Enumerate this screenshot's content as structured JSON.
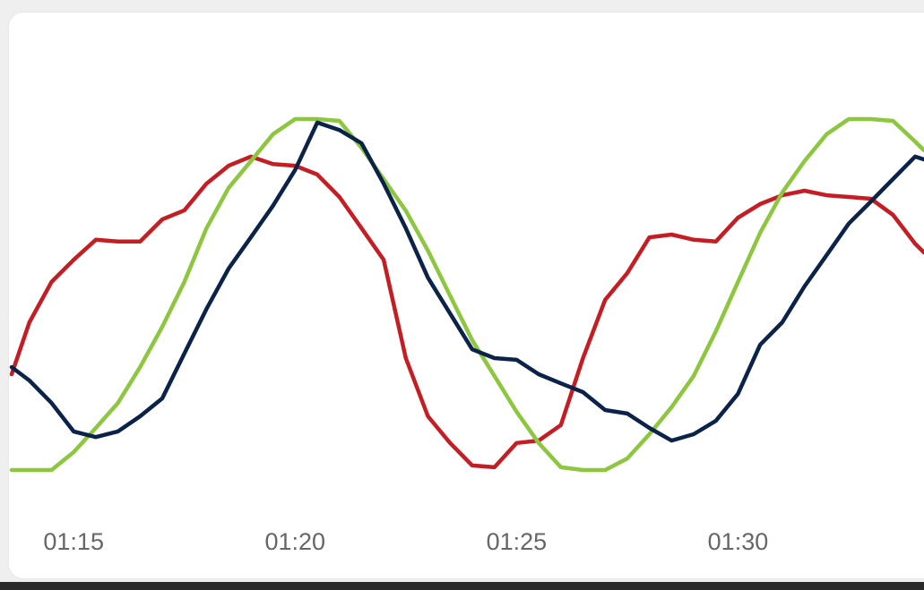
{
  "chart_data": {
    "type": "line",
    "x": [
      73.6,
      74,
      74.5,
      75,
      75.5,
      76,
      76.5,
      77,
      77.5,
      78,
      78.5,
      79,
      79.5,
      80,
      80.5,
      81,
      81.5,
      82,
      82.5,
      83,
      83.5,
      84,
      84.5,
      85,
      85.5,
      86,
      86.5,
      87,
      87.5,
      88,
      88.5,
      89,
      89.5,
      90,
      90.5,
      91,
      91.5,
      92,
      92.5,
      93,
      93.5,
      94,
      94.2
    ],
    "xlim": [
      73.6,
      94.2
    ],
    "xticks": [
      {
        "value": 75,
        "label": "01:15"
      },
      {
        "value": 80,
        "label": "01:20"
      },
      {
        "value": 85,
        "label": "01:25"
      },
      {
        "value": 90,
        "label": "01:30"
      }
    ],
    "ylim": [
      0,
      100
    ],
    "series": [
      {
        "color": "#c41e24",
        "values": [
          27.3,
          42.1,
          53.6,
          59.9,
          65.6,
          65.1,
          65.1,
          71.4,
          74.0,
          81.6,
          86.7,
          89.3,
          87.2,
          86.7,
          84.2,
          77.8,
          68.9,
          59.9,
          31.9,
          15.3,
          7.7,
          1.3,
          0.8,
          7.7,
          8.4,
          12.8,
          31.9,
          48.5,
          56.1,
          66.3,
          67.1,
          65.6,
          65.1,
          71.9,
          75.8,
          78.3,
          79.6,
          78.3,
          77.8,
          77.3,
          72.7,
          64.5,
          62.0
        ]
      },
      {
        "color": "#8dc63f",
        "values": [
          0,
          0,
          0,
          5.1,
          12.0,
          19.1,
          29.3,
          40.8,
          53.6,
          68.9,
          80.4,
          88.0,
          95.7,
          100,
          100,
          99.5,
          91.8,
          82.9,
          73.9,
          62.5,
          49.7,
          37.0,
          26.8,
          16.6,
          7.7,
          0.8,
          0,
          0,
          3.3,
          10.2,
          17.9,
          26.8,
          39.5,
          53.6,
          67.6,
          79.1,
          88.0,
          95.7,
          100,
          100,
          99.5,
          93.6,
          91.1
        ]
      },
      {
        "color": "#0b2249",
        "values": [
          29.3,
          25.5,
          19.1,
          11.0,
          9.4,
          11.0,
          15.3,
          20.4,
          33.2,
          45.9,
          57.4,
          66.3,
          75.3,
          85.5,
          99.0,
          96.9,
          93.1,
          81.6,
          68.9,
          54.8,
          44.6,
          34.4,
          31.9,
          31.4,
          27.3,
          24.7,
          22.2,
          17.1,
          16.1,
          12.0,
          8.4,
          10.2,
          14.0,
          21.7,
          35.7,
          42.1,
          52.3,
          61.2,
          70.2,
          76.5,
          82.9,
          89.3,
          88.5
        ]
      }
    ]
  }
}
